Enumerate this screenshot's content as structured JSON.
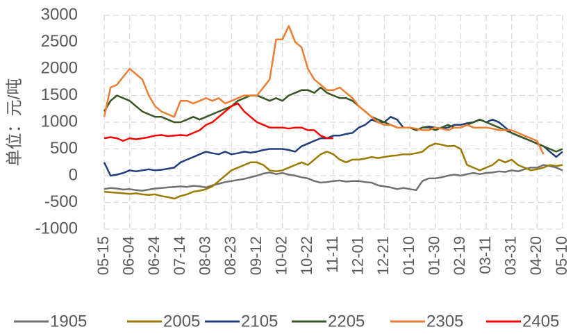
{
  "chart_data": {
    "type": "line",
    "y_label": "单位：元/吨",
    "categories": [
      "05-15",
      null,
      null,
      null,
      "06-04",
      null,
      null,
      null,
      "06-24",
      null,
      null,
      null,
      "07-14",
      null,
      null,
      null,
      "08-03",
      null,
      null,
      null,
      "08-23",
      null,
      null,
      null,
      "09-12",
      null,
      null,
      null,
      "10-02",
      null,
      null,
      null,
      "10-22",
      null,
      null,
      null,
      "11-11",
      null,
      null,
      null,
      "12-01",
      null,
      null,
      null,
      "12-21",
      null,
      null,
      null,
      "01-10",
      null,
      null,
      null,
      "01-30",
      null,
      null,
      null,
      "02-19",
      null,
      null,
      null,
      "03-11",
      null,
      null,
      null,
      "03-31",
      null,
      null,
      null,
      "04-20",
      null,
      null,
      null,
      "05-10"
    ],
    "series": [
      {
        "name": "1905",
        "color": "#707070",
        "values": [
          -250,
          -230,
          -240,
          -260,
          -250,
          -270,
          -280,
          -260,
          -240,
          -230,
          -220,
          -210,
          -200,
          -210,
          -190,
          -200,
          -220,
          -180,
          -150,
          -120,
          -100,
          -80,
          -60,
          -30,
          0,
          40,
          60,
          30,
          50,
          20,
          0,
          -30,
          -50,
          -100,
          -130,
          -120,
          -100,
          -90,
          -110,
          -100,
          -100,
          -120,
          -130,
          -180,
          -200,
          -220,
          -250,
          -230,
          -250,
          -270,
          -100,
          -50,
          -50,
          -30,
          0,
          20,
          0,
          30,
          50,
          30,
          50,
          60,
          80,
          70,
          100,
          80,
          120,
          150,
          150,
          200,
          180,
          150,
          100
        ]
      },
      {
        "name": "2005",
        "color": "#9c7a00",
        "values": [
          -300,
          -310,
          -320,
          -330,
          -340,
          -330,
          -350,
          -360,
          -350,
          -380,
          -400,
          -430,
          -380,
          -350,
          -300,
          -280,
          -250,
          -200,
          -100,
          0,
          100,
          150,
          200,
          250,
          250,
          200,
          100,
          80,
          100,
          150,
          200,
          250,
          200,
          300,
          400,
          450,
          400,
          300,
          250,
          300,
          300,
          320,
          350,
          330,
          350,
          370,
          380,
          400,
          400,
          420,
          450,
          550,
          600,
          580,
          550,
          560,
          500,
          200,
          150,
          100,
          150,
          200,
          300,
          250,
          300,
          200,
          150,
          100,
          120,
          150,
          200,
          180,
          200
        ]
      },
      {
        "name": "2105",
        "color": "#203f7a",
        "values": [
          250,
          0,
          20,
          50,
          100,
          80,
          100,
          120,
          100,
          110,
          130,
          150,
          250,
          300,
          350,
          400,
          450,
          420,
          400,
          450,
          400,
          420,
          450,
          430,
          450,
          480,
          500,
          500,
          500,
          480,
          450,
          550,
          600,
          650,
          700,
          700,
          750,
          750,
          780,
          800,
          900,
          950,
          1050,
          1000,
          1000,
          1100,
          1050,
          900,
          900,
          850,
          900,
          920,
          900,
          880,
          900,
          950,
          950,
          980,
          1000,
          1050,
          1000,
          1050,
          1000,
          900,
          800,
          750,
          700,
          650,
          600,
          550,
          450,
          350,
          450
        ]
      },
      {
        "name": "2205",
        "color": "#375623",
        "values": [
          1200,
          1400,
          1500,
          1450,
          1400,
          1300,
          1200,
          1150,
          1100,
          1100,
          1050,
          1000,
          1000,
          1050,
          1100,
          1050,
          1100,
          1150,
          1200,
          1250,
          1300,
          1400,
          1450,
          1500,
          1500,
          1450,
          1400,
          1450,
          1400,
          1500,
          1550,
          1600,
          1600,
          1550,
          1650,
          1550,
          1500,
          1450,
          1450,
          1400,
          1300,
          1200,
          1100,
          1050,
          1000,
          950,
          900,
          900,
          900,
          850,
          900,
          900,
          850,
          900,
          950,
          900,
          900,
          950,
          1000,
          1050,
          1000,
          950,
          900,
          850,
          800,
          750,
          700,
          650,
          600,
          550,
          500,
          450,
          500
        ]
      },
      {
        "name": "2305",
        "color": "#ed7d31",
        "values": [
          1100,
          1650,
          1700,
          1850,
          2000,
          1900,
          1800,
          1500,
          1300,
          1200,
          1150,
          1100,
          1400,
          1400,
          1350,
          1400,
          1450,
          1400,
          1450,
          1350,
          1400,
          1450,
          1500,
          1500,
          1500,
          1650,
          1800,
          2550,
          2550,
          2800,
          2500,
          2400,
          2000,
          1800,
          1700,
          1600,
          1600,
          1650,
          1550,
          1450,
          1300,
          1200,
          1100,
          1000,
          950,
          950,
          900,
          900,
          900,
          880,
          850,
          850,
          900,
          880,
          850,
          900,
          900,
          950,
          900,
          900,
          900,
          880,
          850,
          850,
          850,
          800,
          750,
          700,
          650,
          400,
          null,
          null,
          null
        ]
      },
      {
        "name": "2405",
        "color": "#ff0000",
        "values": [
          700,
          720,
          700,
          650,
          700,
          680,
          700,
          720,
          750,
          760,
          740,
          750,
          760,
          750,
          800,
          850,
          950,
          1000,
          1100,
          1200,
          1300,
          1350,
          1200,
          1100,
          1000,
          950,
          900,
          900,
          900,
          880,
          900,
          900,
          850,
          850,
          750,
          700,
          700,
          null,
          null,
          null,
          null,
          null,
          null,
          null,
          null,
          null,
          null,
          null,
          null,
          null,
          null,
          null,
          null,
          null,
          null,
          null,
          null,
          null,
          null,
          null,
          null,
          null,
          null,
          null,
          null,
          null,
          null,
          null,
          null,
          null,
          null,
          null,
          null
        ]
      }
    ],
    "ylim": [
      -1000,
      3000
    ],
    "yticks": [
      -1000,
      -500,
      0,
      500,
      1000,
      1500,
      2000,
      2500,
      3000
    ],
    "grid": true,
    "legend": "bottom"
  }
}
